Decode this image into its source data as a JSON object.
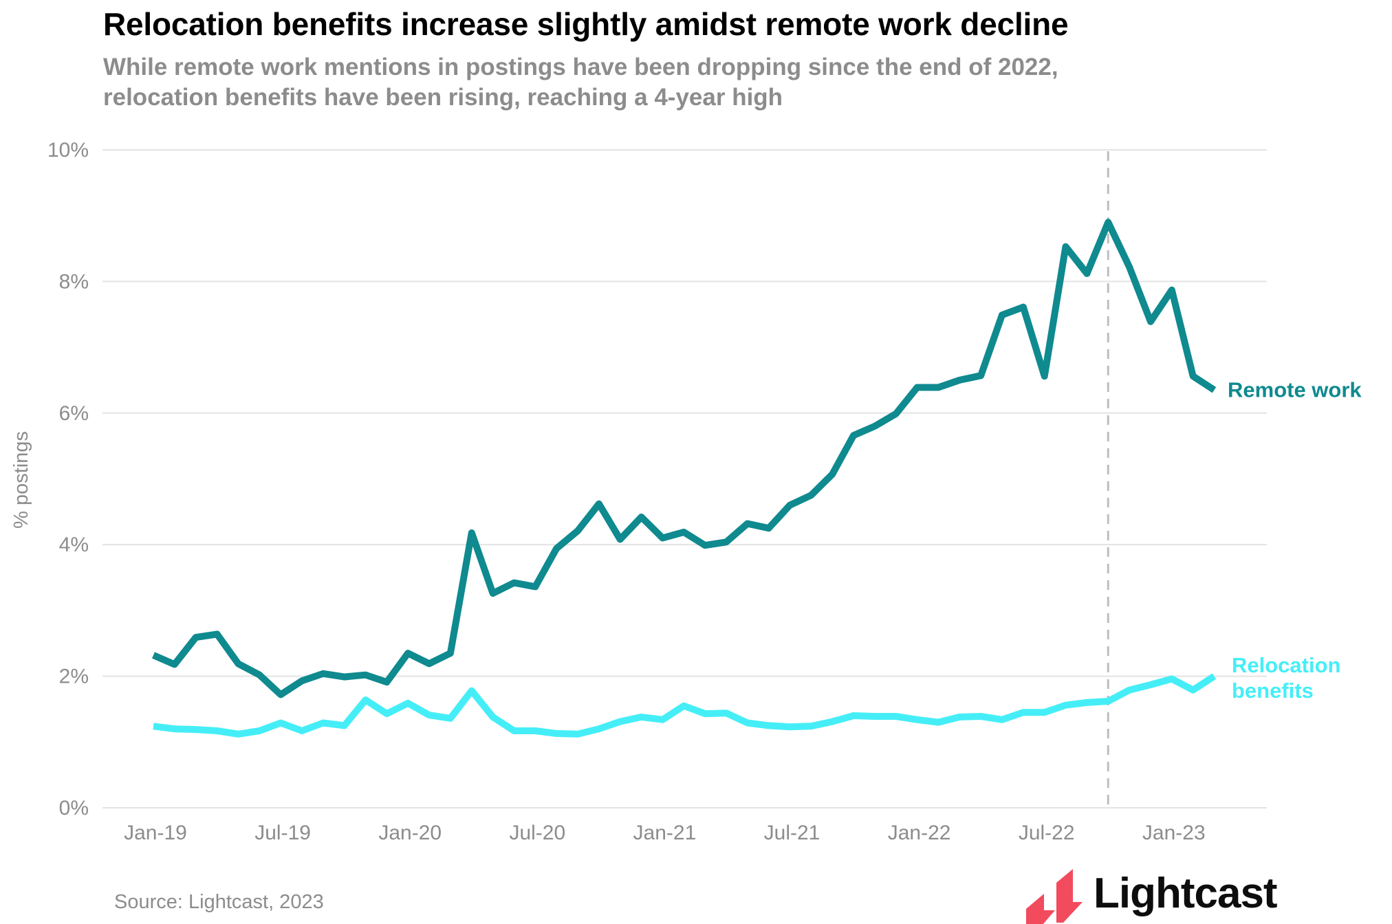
{
  "header": {
    "title": "Relocation benefits increase slightly amidst remote work decline",
    "subtitle_line1": "While remote work mentions in postings have been dropping since the end of 2022,",
    "subtitle_line2": "relocation benefits have been rising, reaching a 4-year high"
  },
  "footer": {
    "source": "Source: Lightcast, 2023",
    "logo_text": "Lightcast"
  },
  "colors": {
    "remote_work": "#0f8a8f",
    "relocation_benefits": "#45eef7",
    "grid": "#e3e3e3",
    "axis_text": "#8c8c8c",
    "reference_line": "#bdbdbd",
    "logo": "#f24b5e"
  },
  "chart_data": {
    "type": "line",
    "title": "Relocation benefits increase slightly amidst remote work decline",
    "subtitle": "While remote work mentions in postings have been dropping since the end of 2022, relocation benefits have been rising, reaching a 4-year high",
    "xlabel": "",
    "ylabel": "% postings",
    "ylim": [
      0,
      10
    ],
    "yticks": [
      0,
      2,
      4,
      6,
      8,
      10
    ],
    "ytick_labels": [
      "0%",
      "2%",
      "4%",
      "6%",
      "8%",
      "10%"
    ],
    "grid": "horizontal",
    "legend": "inline-end-labels",
    "x": [
      "Jan-19",
      "Feb-19",
      "Mar-19",
      "Apr-19",
      "May-19",
      "Jun-19",
      "Jul-19",
      "Aug-19",
      "Sep-19",
      "Oct-19",
      "Nov-19",
      "Dec-19",
      "Jan-20",
      "Feb-20",
      "Mar-20",
      "Apr-20",
      "May-20",
      "Jun-20",
      "Jul-20",
      "Aug-20",
      "Sep-20",
      "Oct-20",
      "Nov-20",
      "Dec-20",
      "Jan-21",
      "Feb-21",
      "Mar-21",
      "Apr-21",
      "May-21",
      "Jun-21",
      "Jul-21",
      "Aug-21",
      "Sep-21",
      "Oct-21",
      "Nov-21",
      "Dec-21",
      "Jan-22",
      "Feb-22",
      "Mar-22",
      "Apr-22",
      "May-22",
      "Jun-22",
      "Jul-22",
      "Aug-22",
      "Sep-22",
      "Oct-22",
      "Nov-22",
      "Dec-22",
      "Jan-23",
      "Feb-23",
      "Mar-23"
    ],
    "xtick_labels": [
      "Jan-19",
      "Jul-19",
      "Jan-20",
      "Jul-20",
      "Jan-21",
      "Jul-21",
      "Jan-22",
      "Jul-22",
      "Jan-23"
    ],
    "reference_line": {
      "x": "Oct-22",
      "style": "dashed"
    },
    "series": [
      {
        "name": "Remote work",
        "label": "Remote work",
        "values": [
          2.32,
          2.18,
          2.59,
          2.64,
          2.19,
          2.02,
          1.72,
          1.93,
          2.04,
          1.99,
          2.02,
          1.91,
          2.35,
          2.19,
          2.35,
          4.18,
          3.26,
          3.42,
          3.36,
          3.94,
          4.21,
          4.62,
          4.08,
          4.42,
          4.1,
          4.19,
          3.99,
          4.04,
          4.32,
          4.25,
          4.6,
          4.75,
          5.07,
          5.66,
          5.8,
          5.99,
          6.39,
          6.39,
          6.5,
          6.57,
          7.49,
          7.61,
          6.56,
          8.53,
          8.12,
          8.9,
          8.22,
          7.39,
          7.87,
          6.56,
          6.35
        ]
      },
      {
        "name": "Relocation benefits",
        "label_lines": [
          "Relocation",
          "benefits"
        ],
        "values": [
          1.24,
          1.2,
          1.19,
          1.17,
          1.12,
          1.17,
          1.29,
          1.17,
          1.29,
          1.25,
          1.64,
          1.43,
          1.59,
          1.41,
          1.36,
          1.78,
          1.38,
          1.17,
          1.17,
          1.13,
          1.12,
          1.2,
          1.31,
          1.38,
          1.34,
          1.55,
          1.43,
          1.44,
          1.29,
          1.25,
          1.23,
          1.24,
          1.31,
          1.4,
          1.39,
          1.39,
          1.34,
          1.3,
          1.38,
          1.39,
          1.34,
          1.45,
          1.45,
          1.56,
          1.6,
          1.62,
          1.79,
          1.87,
          1.96,
          1.79,
          2.0
        ]
      }
    ]
  }
}
